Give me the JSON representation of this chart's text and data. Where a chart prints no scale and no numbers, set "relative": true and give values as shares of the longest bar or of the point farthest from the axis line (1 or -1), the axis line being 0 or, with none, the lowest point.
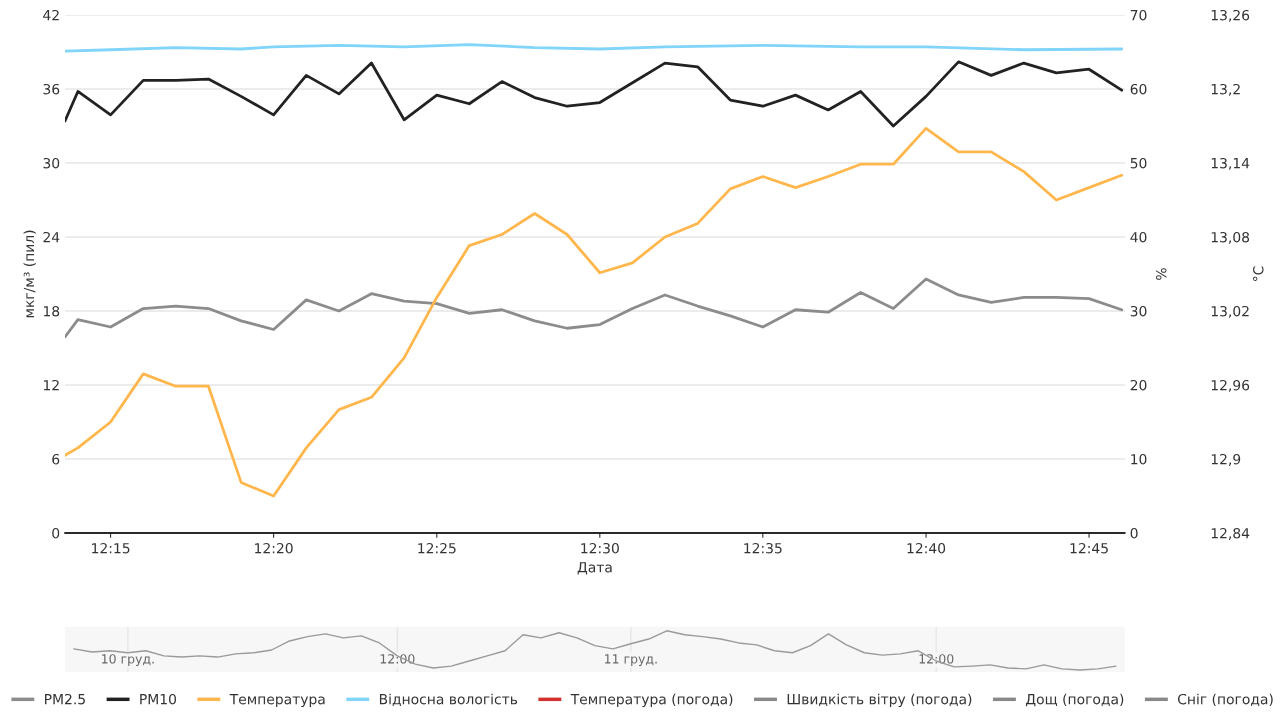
{
  "chart_data": [
    {
      "type": "line",
      "xlabel": "Дата",
      "ylabel": "мкг/м³ (пил)",
      "y2label": "%",
      "y3label": "°C",
      "grid": "y",
      "legend": "bottom",
      "line_style": "solid",
      "marker": "none",
      "x": [
        12.2267,
        12.2333,
        12.25,
        12.2667,
        12.2833,
        12.3,
        12.3167,
        12.3333,
        12.35,
        12.3667,
        12.3833,
        12.4,
        12.4167,
        12.4333,
        12.45,
        12.4667,
        12.4833,
        12.5,
        12.5167,
        12.5333,
        12.55,
        12.5667,
        12.5833,
        12.6,
        12.6167,
        12.6333,
        12.65,
        12.6667,
        12.6833,
        12.7,
        12.7167,
        12.7333,
        12.75,
        12.7667
      ],
      "xlim": [
        12.2267,
        12.7683
      ],
      "xticks": [
        {
          "value": 12.25,
          "label": "12:15"
        },
        {
          "value": 12.3333,
          "label": "12:20"
        },
        {
          "value": 12.4167,
          "label": "12:25"
        },
        {
          "value": 12.5,
          "label": "12:30"
        },
        {
          "value": 12.5833,
          "label": "12:35"
        },
        {
          "value": 12.6667,
          "label": "12:40"
        },
        {
          "value": 12.75,
          "label": "12:45"
        }
      ],
      "ylim": [
        0,
        42
      ],
      "yticks": [
        0,
        6,
        12,
        18,
        24,
        30,
        36,
        42
      ],
      "y2lim": [
        0,
        70
      ],
      "y2ticks": [
        0,
        10,
        20,
        30,
        40,
        50,
        60,
        70
      ],
      "y3lim": [
        12.84,
        13.26
      ],
      "y3ticks": [
        {
          "value": 12.84,
          "label": "12,84"
        },
        {
          "value": 12.9,
          "label": "12,9"
        },
        {
          "value": 12.96,
          "label": "12,96"
        },
        {
          "value": 13.02,
          "label": "13,02"
        },
        {
          "value": 13.08,
          "label": "13,08"
        },
        {
          "value": 13.14,
          "label": "13,14"
        },
        {
          "value": 13.2,
          "label": "13,2"
        },
        {
          "value": 13.26,
          "label": "13,26"
        }
      ],
      "series": [
        {
          "name": "PM2.5",
          "color": "#8c8c8c",
          "values": [
            15.9,
            17.3,
            16.7,
            18.2,
            18.4,
            18.2,
            17.2,
            16.5,
            18.9,
            18.0,
            19.4,
            18.8,
            18.6,
            17.8,
            18.1,
            17.2,
            16.6,
            16.9,
            18.2,
            19.3,
            18.4,
            17.6,
            16.7,
            18.1,
            17.9,
            19.5,
            18.2,
            20.6,
            19.3,
            18.7,
            19.1,
            19.1,
            19.0,
            18.1
          ]
        },
        {
          "name": "PM10",
          "color": "#222222",
          "values": [
            33.4,
            35.8,
            33.9,
            36.7,
            36.7,
            36.8,
            35.4,
            33.9,
            37.1,
            35.6,
            38.1,
            33.5,
            35.5,
            34.8,
            36.6,
            35.3,
            34.6,
            34.9,
            36.5,
            38.1,
            37.8,
            35.1,
            34.6,
            35.5,
            34.3,
            35.8,
            33.0,
            35.4,
            38.2,
            37.1,
            38.1,
            37.3,
            37.6,
            35.9
          ]
        },
        {
          "name": "Температура",
          "color": "#ffb74d",
          "values": [
            6.3,
            6.9,
            9.0,
            12.9,
            11.9,
            11.9,
            4.1,
            3.0,
            6.9,
            10.0,
            11.0,
            14.2,
            19.1,
            23.3,
            24.2,
            25.9,
            24.2,
            21.1,
            21.9,
            24.0,
            25.1,
            27.9,
            28.9,
            28.0,
            28.9,
            29.9,
            29.9,
            32.8,
            30.9,
            30.9,
            29.3,
            27.0,
            28.0,
            29.0
          ]
        },
        {
          "name": "Відносна вологість",
          "color": "#81d4fa",
          "axis": "y2",
          "x": [
            12.2267,
            12.25,
            12.2833,
            12.3167,
            12.3333,
            12.3667,
            12.4,
            12.4333,
            12.4667,
            12.5,
            12.5333,
            12.5833,
            12.6333,
            12.6667,
            12.7167,
            12.7667
          ],
          "values": [
            65.1,
            65.3,
            65.6,
            65.4,
            65.7,
            65.9,
            65.7,
            66.0,
            65.6,
            65.4,
            65.7,
            65.9,
            65.7,
            65.7,
            65.3,
            65.4
          ]
        },
        {
          "name": "Температура (погода)",
          "color": "#d32f2f",
          "axis": "y3",
          "values": [
            null,
            null,
            null,
            null,
            null,
            null,
            null,
            null,
            null,
            null,
            null,
            null,
            null,
            null,
            null,
            null,
            null,
            null,
            null,
            null,
            null,
            null,
            null,
            null,
            null,
            null,
            null,
            null,
            null,
            null,
            null,
            null,
            null,
            null
          ]
        },
        {
          "name": "Швидкість вітру (погода)",
          "color": "#888888",
          "values": [
            null,
            null,
            null,
            null,
            null,
            null,
            null,
            null,
            null,
            null,
            null,
            null,
            null,
            null,
            null,
            null,
            null,
            null,
            null,
            null,
            null,
            null,
            null,
            null,
            null,
            null,
            null,
            null,
            null,
            null,
            null,
            null,
            null,
            null
          ]
        },
        {
          "name": "Дощ (погода)",
          "color": "#888888",
          "values": [
            null,
            null,
            null,
            null,
            null,
            null,
            null,
            null,
            null,
            null,
            null,
            null,
            null,
            null,
            null,
            null,
            null,
            null,
            null,
            null,
            null,
            null,
            null,
            null,
            null,
            null,
            null,
            null,
            null,
            null,
            null,
            null,
            null,
            null
          ]
        },
        {
          "name": "Сніг (погода)",
          "color": "#888888",
          "values": [
            null,
            null,
            null,
            null,
            null,
            null,
            null,
            null,
            null,
            null,
            null,
            null,
            null,
            null,
            null,
            null,
            null,
            null,
            null,
            null,
            null,
            null,
            null,
            null,
            null,
            null,
            null,
            null,
            null,
            null,
            null,
            null,
            null,
            null
          ]
        }
      ]
    },
    {
      "type": "line",
      "relative": true,
      "tick_labels": "x",
      "grid": "x",
      "categories": [
        null,
        null,
        null,
        "10 груд.",
        null,
        null,
        null,
        null,
        null,
        null,
        null,
        null,
        null,
        null,
        null,
        null,
        null,
        null,
        "12:00",
        null,
        null,
        null,
        null,
        null,
        null,
        null,
        null,
        null,
        null,
        null,
        null,
        "11 груд.",
        null,
        null,
        null,
        null,
        null,
        null,
        null,
        null,
        null,
        null,
        null,
        null,
        null,
        null,
        null,
        null,
        "12:00",
        null,
        null,
        null,
        null,
        null,
        null,
        null,
        null,
        null,
        null
      ],
      "series": [
        {
          "color": "#9a9a9a",
          "values": [
            0.54,
            0.46,
            0.49,
            0.44,
            0.49,
            0.36,
            0.33,
            0.36,
            0.33,
            0.41,
            0.44,
            0.51,
            0.74,
            0.85,
            0.92,
            0.82,
            0.87,
            0.69,
            0.36,
            0.15,
            0.05,
            0.1,
            0.23,
            0.36,
            0.49,
            0.9,
            0.82,
            0.95,
            0.82,
            0.62,
            0.54,
            0.67,
            0.79,
            1,
            0.9,
            0.85,
            0.79,
            0.69,
            0.64,
            0.49,
            0.44,
            0.62,
            0.92,
            0.64,
            0.44,
            0.38,
            0.41,
            0.49,
            0.23,
            0.08,
            0.1,
            0.13,
            0.05,
            0.03,
            0.13,
            0.03,
            0,
            0.03,
            0.1
          ]
        }
      ]
    }
  ]
}
